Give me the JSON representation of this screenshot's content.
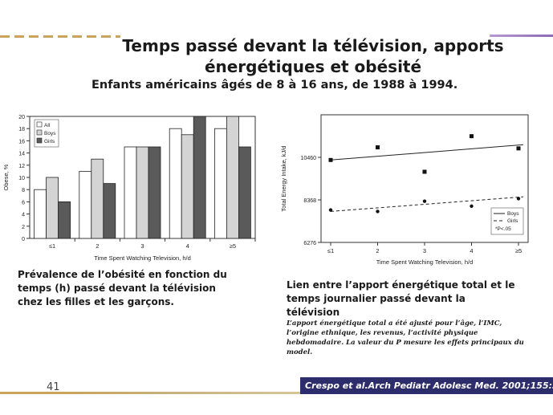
{
  "title": "Temps passé devant la télévision, apports énergétiques et obésité",
  "subtitle": "Enfants américains âgés de 8 à 16 ans, de 1988 à 1994.",
  "left_caption": "Prévalence de l’obésité en fonction du temps (h) passé devant la télévision chez les filles et les garçons.",
  "right_caption": "Lien entre l’apport énergétique total et le temps journalier passé devant la télévision",
  "right_note": "L’apport énergétique total a été ajusté pour l’âge, l’IMC, l’origine ethnique, les revenus, l’activité physique hebdomadaire. La valeur du P mesure les effets principaux du model.",
  "page_number": "41",
  "citation": "Crespo et al.Arch Pediatr Adolesc Med. 2001;155:360-365",
  "colors": {
    "all": "#ffffff",
    "boys": "#d4d4d4",
    "girls": "#5a5a5a",
    "accent_band": "#2d2d6b"
  },
  "chart_data": [
    {
      "type": "bar",
      "categories": [
        "≤1",
        "2",
        "3",
        "4",
        "≥5"
      ],
      "xlabel": "Time Spent Watching Television, h/d",
      "ylabel": "Obese, %",
      "ylim": [
        0,
        20
      ],
      "yticks": [
        0,
        2,
        4,
        6,
        8,
        10,
        12,
        14,
        16,
        18,
        20
      ],
      "legend": "top-left",
      "grid": false,
      "series": [
        {
          "name": "All",
          "values": [
            8,
            11,
            15,
            18,
            18
          ]
        },
        {
          "name": "Boys",
          "values": [
            10,
            13,
            15,
            17,
            20
          ]
        },
        {
          "name": "Girls",
          "values": [
            6,
            9,
            15,
            20,
            15
          ]
        }
      ]
    },
    {
      "type": "scatter",
      "categories": [
        "≤1",
        "2",
        "3",
        "4",
        "≥5"
      ],
      "xlabel": "Time Spent Watching Television, h/d",
      "ylabel": "Total Energy Intake, kJ/d",
      "ylim": [
        6276,
        12552
      ],
      "yticks": [
        6276,
        8368,
        10460
      ],
      "legend": "bottom-right",
      "grid": false,
      "legend_note": "*P<.05",
      "series": [
        {
          "name": "Boys",
          "values": [
            10330,
            10950,
            9750,
            11500,
            10900
          ],
          "trend": [
            10330,
            11080
          ]
        },
        {
          "name": "Girls",
          "values": [
            7870,
            7800,
            8300,
            8060,
            8430
          ],
          "trend": [
            7800,
            8520
          ]
        }
      ]
    }
  ]
}
